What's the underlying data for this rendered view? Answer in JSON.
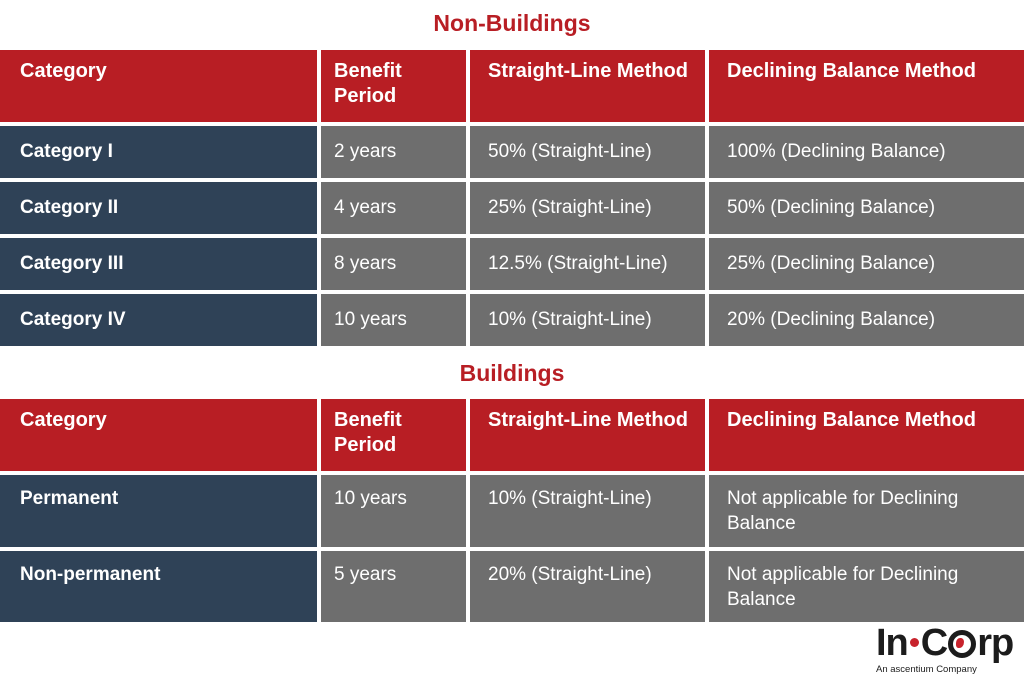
{
  "non_buildings": {
    "title": "Non-Buildings",
    "headers": [
      "Category",
      "Benefit Period",
      "Straight-Line Method",
      "Declining Balance Method"
    ],
    "rows": [
      [
        "Category I",
        "2 years",
        "50% (Straight-Line)",
        "100% (Declining Balance)"
      ],
      [
        "Category II",
        "4 years",
        "25% (Straight-Line)",
        "50% (Declining Balance)"
      ],
      [
        "Category III",
        "8 years",
        "12.5% (Straight-Line)",
        "25% (Declining Balance)"
      ],
      [
        "Category IV",
        "10 years",
        "10% (Straight-Line)",
        "20% (Declining Balance)"
      ]
    ]
  },
  "buildings": {
    "title": "Buildings",
    "headers": [
      "Category",
      "Benefit Period",
      "Straight-Line Method",
      "Declining Balance Method"
    ],
    "rows": [
      [
        "Permanent",
        "10 years",
        "10% (Straight-Line)",
        "Not applicable for Declining Balance"
      ],
      [
        "Non-permanent",
        "5 years",
        "20% (Straight-Line)",
        "Not applicable for Declining Balance"
      ]
    ]
  },
  "logo": {
    "text_left": "In",
    "text_mid": "C",
    "text_right": "rp",
    "tagline": "An ascentium Company",
    "accent_color": "#c8232c"
  },
  "colors": {
    "header_red": "#b81e24",
    "category_navy": "#2f4257",
    "cell_gray": "#6e6e6e"
  }
}
